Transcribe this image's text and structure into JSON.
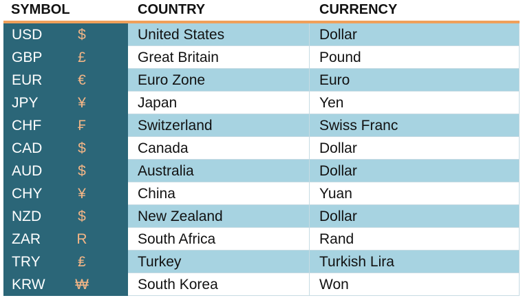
{
  "table": {
    "header": [
      "SYMBOL",
      "COUNTRY",
      "CURRENCY"
    ],
    "rows": [
      [
        "USD",
        "$",
        "United States",
        "Dollar"
      ],
      [
        "GBP",
        "£",
        "Great Britain",
        "Pound"
      ],
      [
        "EUR",
        "€",
        "Euro Zone",
        "Euro"
      ],
      [
        "JPY",
        "¥",
        "Japan",
        "Yen"
      ],
      [
        "CHF",
        "₣",
        "Switzerland",
        "Swiss Franc"
      ],
      [
        "CAD",
        "$",
        "Canada",
        "Dollar"
      ],
      [
        "AUD",
        "$",
        "Australia",
        "Dollar"
      ],
      [
        "CHY",
        "¥",
        "China",
        "Yuan"
      ],
      [
        "NZD",
        "$",
        "New Zealand",
        "Dollar"
      ],
      [
        "ZAR",
        "R",
        "South Africa",
        "Rand"
      ],
      [
        "TRY",
        "₤",
        "Turkey",
        "Turkish Lira"
      ],
      [
        "KRW",
        "₩",
        "South Korea",
        "Won"
      ]
    ]
  }
}
